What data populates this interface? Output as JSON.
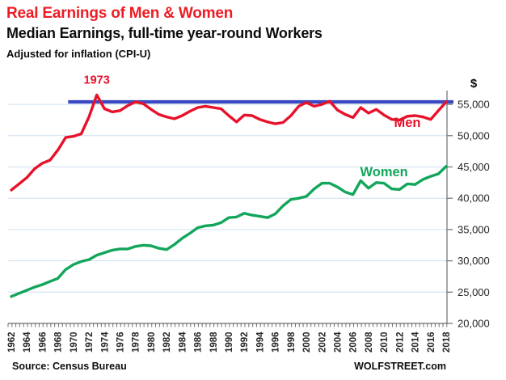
{
  "header": {
    "title": "Real Earnings of Men & Women",
    "subtitle": "Median Earnings, full-time year-round Workers",
    "note": "Adjusted for inflation (CPI-U)"
  },
  "footer": {
    "source": "Source: Census Bureau",
    "brand": "WOLFSTREET.com"
  },
  "colors": {
    "title_red": "#ED1C24",
    "men_line": "#E8112A",
    "women_line": "#12A65A",
    "reference_blue": "#3A49C3",
    "gridline": "#CFE0F0",
    "axis": "#6E6E6E",
    "tick_label": "#262626"
  },
  "chart_data": {
    "type": "line",
    "title": "Real Earnings of Men & Women",
    "subtitle": "Median Earnings, full-time year-round Workers",
    "unit_note": "Adjusted for inflation (CPI-U)",
    "x_start_year": 1962,
    "x_end_year": 2018,
    "x": [
      1962,
      1963,
      1964,
      1965,
      1966,
      1967,
      1968,
      1969,
      1970,
      1971,
      1972,
      1973,
      1974,
      1975,
      1976,
      1977,
      1978,
      1979,
      1980,
      1981,
      1982,
      1983,
      1984,
      1985,
      1986,
      1987,
      1988,
      1989,
      1990,
      1991,
      1992,
      1993,
      1994,
      1995,
      1996,
      1997,
      1998,
      1999,
      2000,
      2001,
      2002,
      2003,
      2004,
      2005,
      2006,
      2007,
      2008,
      2009,
      2010,
      2011,
      2012,
      2013,
      2014,
      2015,
      2016,
      2017,
      2018
    ],
    "series": [
      {
        "name": "Men",
        "values": [
          41300,
          42300,
          43300,
          44700,
          45600,
          46100,
          47700,
          49700,
          49900,
          50300,
          53000,
          56500,
          54300,
          53800,
          54000,
          54800,
          55400,
          55100,
          54200,
          53400,
          53000,
          52700,
          53200,
          53900,
          54500,
          54700,
          54500,
          54300,
          53200,
          52200,
          53300,
          53200,
          52600,
          52200,
          51900,
          52100,
          53200,
          54700,
          55300,
          54700,
          55000,
          55500,
          54100,
          53400,
          52900,
          54500,
          53600,
          54200,
          53300,
          52600,
          52500,
          53100,
          53200,
          53000,
          52600,
          54000,
          55400
        ]
      },
      {
        "name": "Women",
        "values": [
          24300,
          24800,
          25300,
          25800,
          26200,
          26700,
          27200,
          28600,
          29400,
          29900,
          30200,
          30900,
          31300,
          31700,
          31900,
          31900,
          32300,
          32500,
          32400,
          32000,
          31800,
          32600,
          33600,
          34400,
          35300,
          35600,
          35700,
          36100,
          36900,
          37000,
          37600,
          37300,
          37100,
          36900,
          37500,
          38800,
          39800,
          40000,
          40300,
          41500,
          42400,
          42400,
          41800,
          41000,
          40600,
          42800,
          41600,
          42500,
          42400,
          41500,
          41400,
          42300,
          42200,
          43000,
          43500,
          43900,
          45100
        ]
      }
    ],
    "reference_line": {
      "value": 55400,
      "start_year": 1969,
      "extends_past_axis": true
    },
    "annotations": [
      {
        "text": "1973",
        "year": 1973,
        "anchor_value": 58300,
        "series": "Men"
      },
      {
        "text": "Men",
        "year": 2013,
        "anchor_value": 51400,
        "series": "Men"
      },
      {
        "text": "Women",
        "year": 2010,
        "anchor_value": 43500,
        "series": "Women"
      }
    ],
    "y_axis": {
      "unit_label": "$",
      "side": "right",
      "ticks": [
        20000,
        25000,
        30000,
        35000,
        40000,
        45000,
        50000,
        55000
      ],
      "range": [
        20000,
        58000
      ],
      "grid": true
    },
    "x_axis": {
      "tick_every_years": 0.5,
      "label_every_years": 2,
      "labels": [
        "1962",
        "1964",
        "1966",
        "1968",
        "1970",
        "1972",
        "1974",
        "1976",
        "1978",
        "1980",
        "1982",
        "1984",
        "1986",
        "1988",
        "1990",
        "1992",
        "1994",
        "1996",
        "1998",
        "2000",
        "2002",
        "2004",
        "2006",
        "2008",
        "2010",
        "2012",
        "2014",
        "2016",
        "2018"
      ]
    },
    "legend_position": "inline-labels"
  }
}
